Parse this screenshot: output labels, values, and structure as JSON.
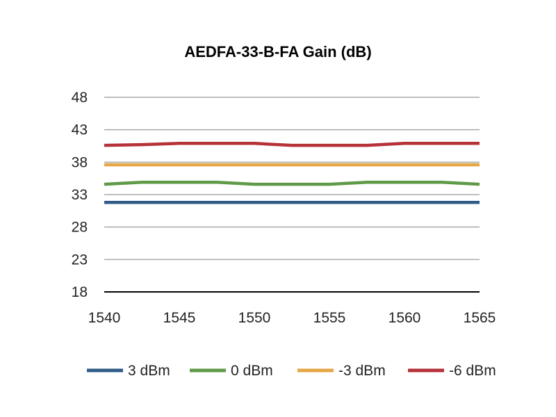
{
  "chart_data": {
    "type": "line",
    "title": "AEDFA-33-B-FA Gain  (dB)",
    "xlabel": "",
    "ylabel": "",
    "x": [
      1540,
      1542.5,
      1545,
      1547.5,
      1550,
      1552.5,
      1555,
      1557.5,
      1560,
      1562.5,
      1565
    ],
    "x_ticks": [
      "1540",
      "1545",
      "1550",
      "1555",
      "1560",
      "1565"
    ],
    "y_ticks": [
      "48",
      "43",
      "38",
      "33",
      "28",
      "23",
      "18"
    ],
    "xlim": [
      1540,
      1565
    ],
    "ylim": [
      18,
      48
    ],
    "grid": true,
    "legend_position": "bottom",
    "series": [
      {
        "name": "3 dBm",
        "color": "#2f5b86",
        "values": [
          31.8,
          31.8,
          31.8,
          31.8,
          31.8,
          31.8,
          31.8,
          31.8,
          31.8,
          31.8,
          31.8
        ]
      },
      {
        "name": "0 dBm",
        "color": "#5f9a48",
        "values": [
          34.6,
          34.9,
          34.9,
          34.9,
          34.6,
          34.6,
          34.6,
          34.9,
          34.9,
          34.9,
          34.6
        ]
      },
      {
        "name": "-3 dBm",
        "color": "#e5a644",
        "values": [
          37.6,
          37.6,
          37.6,
          37.6,
          37.6,
          37.6,
          37.6,
          37.6,
          37.6,
          37.6,
          37.6
        ]
      },
      {
        "name": "-6 dBm",
        "color": "#b53238",
        "values": [
          40.6,
          40.7,
          40.9,
          40.9,
          40.9,
          40.6,
          40.6,
          40.6,
          40.9,
          40.9,
          40.9
        ]
      }
    ]
  }
}
